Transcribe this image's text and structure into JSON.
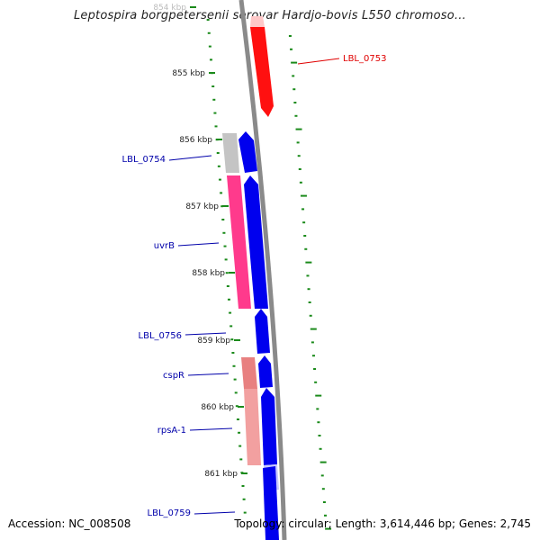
{
  "title": "Leptospira borgpetersenii serovar Hardjo-bovis L550 chromoso…",
  "footer": {
    "accession": "Accession: NC_008508",
    "stats": "Topology: circular; Length: 3,614,446 bp; Genes: 2,745"
  },
  "ticks": [
    {
      "label": "854 kbp",
      "faded": true
    },
    {
      "label": "855 kbp"
    },
    {
      "label": "856 kbp"
    },
    {
      "label": "857 kbp"
    },
    {
      "label": "858 kbp"
    },
    {
      "label": "859 kbp"
    },
    {
      "label": "860 kbp"
    },
    {
      "label": "861 kbp"
    }
  ],
  "gene_labels": [
    {
      "label": "LBL_0753",
      "color": "#e00000"
    },
    {
      "label": "LBL_0754",
      "color": "#0000aa"
    },
    {
      "label": "uvrB",
      "color": "#0000aa"
    },
    {
      "label": "LBL_0756",
      "color": "#0000aa"
    },
    {
      "label": "cspR",
      "color": "#0000aa"
    },
    {
      "label": "rpsA-1",
      "color": "#0000aa"
    },
    {
      "label": "LBL_0759",
      "color": "#0000aa"
    }
  ],
  "colors": {
    "backbone": "#8a8a8a",
    "tick": "#1a8a1a",
    "forward_gene": "#0000ee",
    "red_gene": "#ff1010",
    "pink_gene": "#ff3a8c",
    "gray_gene": "#c4c4c4",
    "salmon_gene": "#e88080"
  }
}
